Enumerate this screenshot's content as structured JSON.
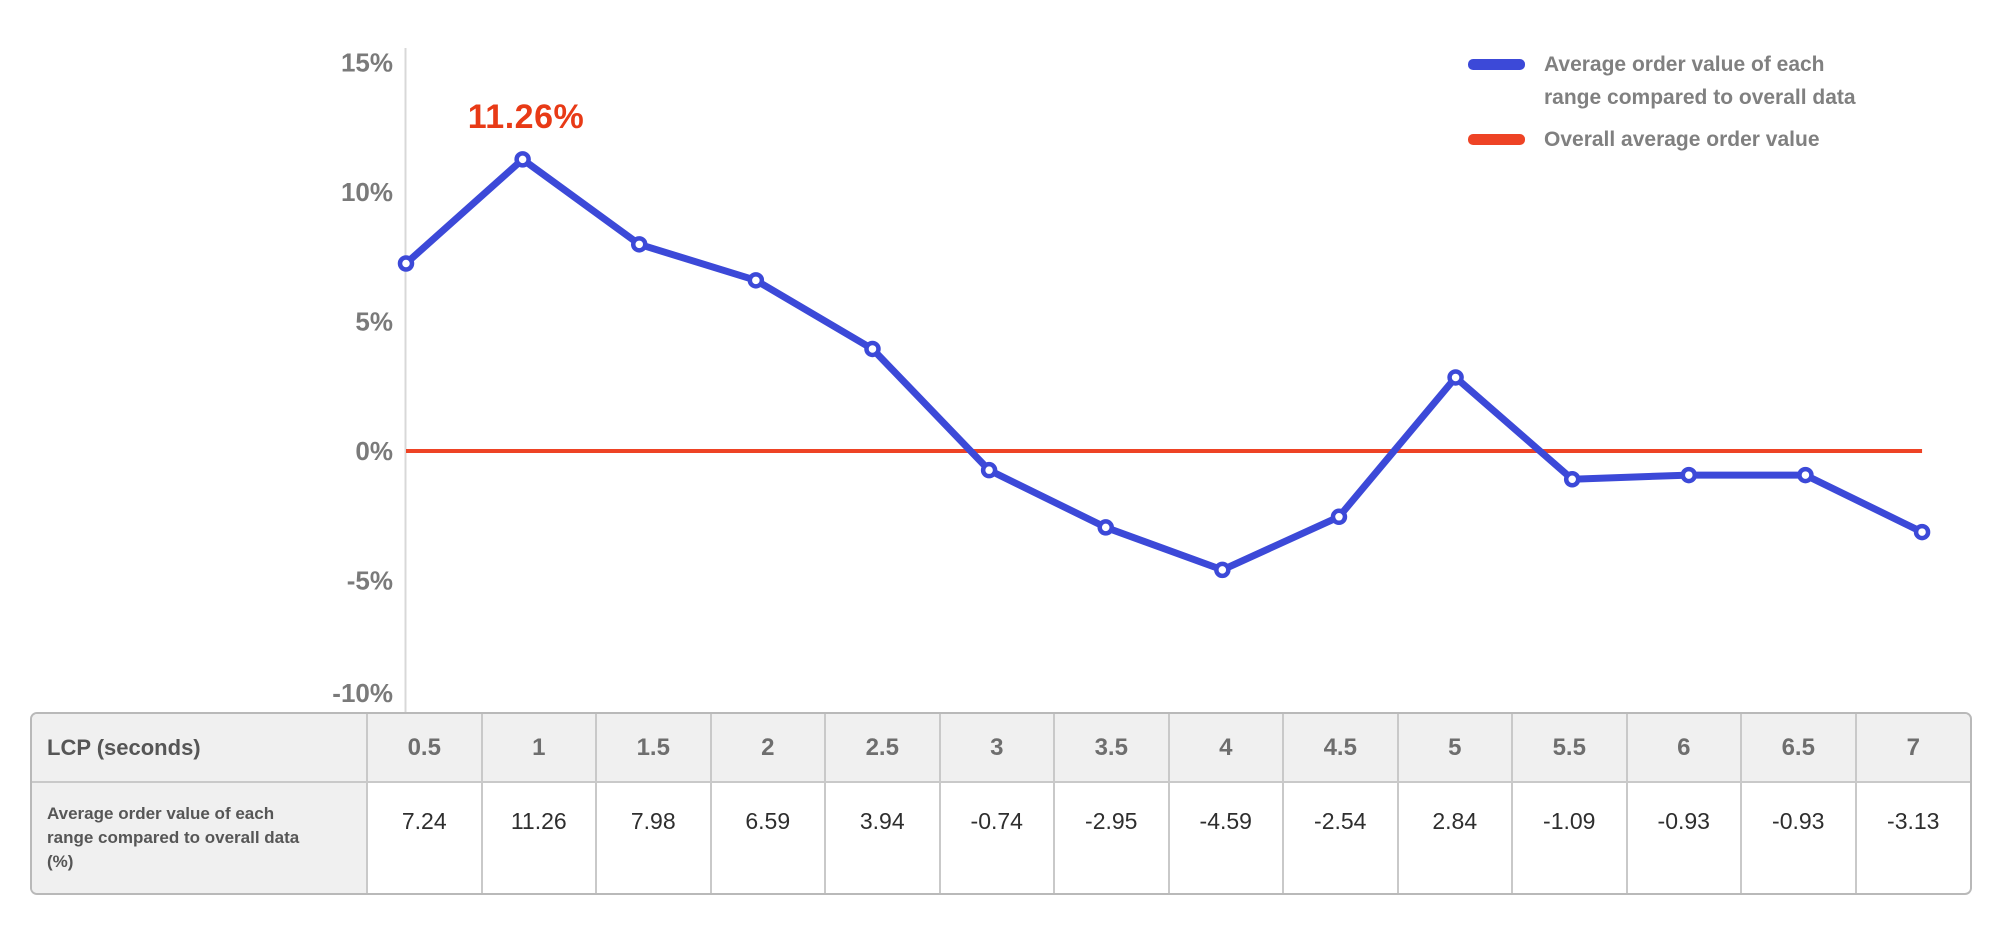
{
  "chart": {
    "annotation": "11.26%"
  },
  "chart_data": {
    "type": "line",
    "title": "",
    "xlabel": "LCP (seconds)",
    "ylabel": "",
    "categories": [
      "0.5",
      "1",
      "1.5",
      "2",
      "2.5",
      "3",
      "3.5",
      "4",
      "4.5",
      "5",
      "5.5",
      "6",
      "6.5",
      "7"
    ],
    "series": [
      {
        "name": "Average order value of each range compared to overall data",
        "type": "line",
        "values": [
          7.24,
          11.26,
          7.98,
          6.59,
          3.94,
          -0.74,
          -2.95,
          -4.59,
          -2.54,
          2.84,
          -1.09,
          -0.93,
          -0.93,
          -3.13
        ],
        "color": "#3c49d8"
      },
      {
        "name": "Overall average order value",
        "type": "reference-line",
        "value": 0,
        "color": "#ee4325"
      }
    ],
    "yticks": [
      {
        "label": "15%",
        "value": 15
      },
      {
        "label": "10%",
        "value": 10
      },
      {
        "label": "5%",
        "value": 5
      },
      {
        "label": "0%",
        "value": 0
      },
      {
        "label": "-5%",
        "value": -5
      },
      {
        "label": "-10%",
        "value": -10
      }
    ],
    "ylim": [
      -10,
      15
    ],
    "grid": false,
    "legend_position": "top-right",
    "annotations": [
      {
        "text": "11.26%",
        "x": "1",
        "y": 11.26
      }
    ]
  },
  "legend": {
    "items": [
      {
        "label": "Average order value of each\nrange compared to overall data",
        "color_key": "accent_blue"
      },
      {
        "label": "Overall average order value",
        "color_key": "accent_red"
      }
    ]
  },
  "table": {
    "corner_label": "LCP (seconds)",
    "row_label": "Average order value of each range compared to overall data (%)",
    "columns": [
      "0.5",
      "1",
      "1.5",
      "2",
      "2.5",
      "3",
      "3.5",
      "4",
      "4.5",
      "5",
      "5.5",
      "6",
      "6.5",
      "7"
    ],
    "values": [
      "7.24",
      "11.26",
      "7.98",
      "6.59",
      "3.94",
      "-0.74",
      "-2.95",
      "-4.59",
      "-2.54",
      "2.84",
      "-1.09",
      "-0.93",
      "-0.93",
      "-3.13"
    ]
  },
  "colors": {
    "accent_blue": "#3c49d8",
    "accent_red": "#ee4325",
    "annotation_red": "#e83a16",
    "axis_text": "#7a7a7a",
    "axis_line": "#d8d8d8",
    "legend_text": "#808080",
    "table_border": "#c9c9c9",
    "table_header_bg": "#f0f0f0",
    "header_text": "#6e6e6e",
    "value_text": "#2e2e2e"
  }
}
